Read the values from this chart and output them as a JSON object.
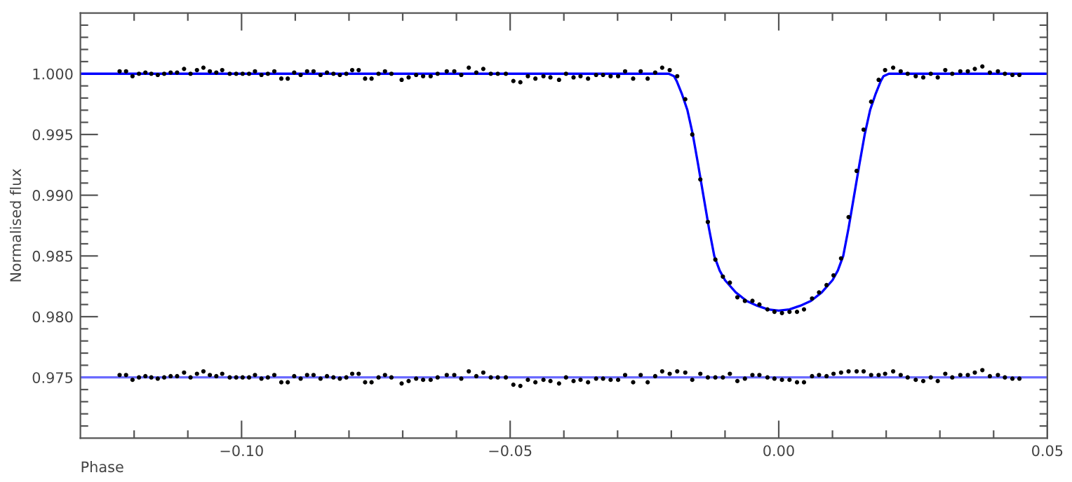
{
  "chart_data": {
    "type": "scatter",
    "xlabel": "Phase",
    "ylabel": "Normalised flux",
    "xlim": [
      -0.13,
      0.05
    ],
    "ylim": [
      0.97,
      1.005
    ],
    "xticks": [
      {
        "value": -0.12,
        "label": null
      },
      {
        "value": -0.11,
        "label": null
      },
      {
        "value": -0.1,
        "label": "−0.10"
      },
      {
        "value": -0.09,
        "label": null
      },
      {
        "value": -0.08,
        "label": null
      },
      {
        "value": -0.07,
        "label": null
      },
      {
        "value": -0.06,
        "label": null
      },
      {
        "value": -0.05,
        "label": "−0.05"
      },
      {
        "value": -0.04,
        "label": null
      },
      {
        "value": -0.03,
        "label": null
      },
      {
        "value": -0.02,
        "label": null
      },
      {
        "value": -0.01,
        "label": null
      },
      {
        "value": 0.0,
        "label": "0.00"
      },
      {
        "value": 0.01,
        "label": null
      },
      {
        "value": 0.02,
        "label": null
      },
      {
        "value": 0.03,
        "label": null
      },
      {
        "value": 0.04,
        "label": null
      },
      {
        "value": 0.05,
        "label": "0.05"
      }
    ],
    "yticks": [
      {
        "value": 0.971,
        "label": null
      },
      {
        "value": 0.972,
        "label": null
      },
      {
        "value": 0.973,
        "label": null
      },
      {
        "value": 0.974,
        "label": null
      },
      {
        "value": 0.975,
        "label": "0.975"
      },
      {
        "value": 0.976,
        "label": null
      },
      {
        "value": 0.977,
        "label": null
      },
      {
        "value": 0.978,
        "label": null
      },
      {
        "value": 0.979,
        "label": null
      },
      {
        "value": 0.98,
        "label": "0.980"
      },
      {
        "value": 0.981,
        "label": null
      },
      {
        "value": 0.982,
        "label": null
      },
      {
        "value": 0.983,
        "label": null
      },
      {
        "value": 0.984,
        "label": null
      },
      {
        "value": 0.985,
        "label": "0.985"
      },
      {
        "value": 0.986,
        "label": null
      },
      {
        "value": 0.987,
        "label": null
      },
      {
        "value": 0.988,
        "label": null
      },
      {
        "value": 0.989,
        "label": null
      },
      {
        "value": 0.99,
        "label": "0.990"
      },
      {
        "value": 0.991,
        "label": null
      },
      {
        "value": 0.992,
        "label": null
      },
      {
        "value": 0.993,
        "label": null
      },
      {
        "value": 0.994,
        "label": null
      },
      {
        "value": 0.995,
        "label": "0.995"
      },
      {
        "value": 0.996,
        "label": null
      },
      {
        "value": 0.997,
        "label": null
      },
      {
        "value": 0.998,
        "label": null
      },
      {
        "value": 0.999,
        "label": null
      },
      {
        "value": 1.0,
        "label": "1.000"
      },
      {
        "value": 1.001,
        "label": null
      },
      {
        "value": 1.002,
        "label": null
      },
      {
        "value": 1.003,
        "label": null
      },
      {
        "value": 1.004,
        "label": null
      }
    ],
    "grid": false,
    "legend": false,
    "series": [
      {
        "type": "line",
        "color": "#6a6aff",
        "marker": "none",
        "line_style": "solid",
        "x": [
          -0.13,
          0.05
        ],
        "values": [
          0.975,
          0.975
        ]
      },
      {
        "type": "line",
        "color": "#0000ff",
        "marker": "none",
        "line_style": "solid",
        "x": [
          -0.13,
          -0.0205,
          -0.0195,
          -0.019,
          -0.018,
          -0.017,
          -0.016,
          -0.015,
          -0.014,
          -0.013,
          -0.012,
          -0.011,
          -0.01,
          -0.008,
          -0.006,
          -0.004,
          -0.002,
          0.0,
          0.002,
          0.004,
          0.006,
          0.008,
          0.01,
          0.011,
          0.012,
          0.013,
          0.014,
          0.015,
          0.016,
          0.017,
          0.018,
          0.019,
          0.0195,
          0.0205,
          0.05
        ],
        "values": [
          1.0,
          1.0,
          0.9998,
          0.9994,
          0.9983,
          0.997,
          0.995,
          0.9925,
          0.9899,
          0.9873,
          0.985,
          0.9838,
          0.983,
          0.982,
          0.9813,
          0.9809,
          0.9806,
          0.9805,
          0.9806,
          0.9809,
          0.9813,
          0.982,
          0.983,
          0.9838,
          0.985,
          0.9873,
          0.9899,
          0.9925,
          0.995,
          0.997,
          0.9983,
          0.9994,
          0.9998,
          1.0,
          1.0
        ]
      },
      {
        "color": "#000000",
        "marker": "circle",
        "x": [
          -0.1227,
          -0.1215,
          -0.1203,
          -0.1191,
          -0.1179,
          -0.1168,
          -0.1156,
          -0.1144,
          -0.1132,
          -0.112,
          -0.1107,
          -0.1095,
          -0.1083,
          -0.1071,
          -0.1059,
          -0.1047,
          -0.1036,
          -0.1022,
          -0.101,
          -0.0998,
          -0.0986,
          -0.0975,
          -0.0963,
          -0.0951,
          -0.0939,
          -0.0926,
          -0.0914,
          -0.0902,
          -0.089,
          -0.0878,
          -0.0866,
          -0.0853,
          -0.0841,
          -0.0829,
          -0.0817,
          -0.0805,
          -0.0794,
          -0.0782,
          -0.077,
          -0.0758,
          -0.0745,
          -0.0733,
          -0.0721,
          -0.0702,
          -0.0689,
          -0.0675,
          -0.0662,
          -0.0648,
          -0.0635,
          -0.0618,
          -0.0604,
          -0.0591,
          -0.0577,
          -0.0563,
          -0.055,
          -0.0536,
          -0.0523,
          -0.0508,
          -0.0494,
          -0.0481,
          -0.0467,
          -0.0453,
          -0.0438,
          -0.0425,
          -0.0409,
          -0.0396,
          -0.0382,
          -0.0369,
          -0.0355,
          -0.034,
          -0.0327,
          -0.0313,
          -0.0299,
          -0.0286,
          -0.0271,
          -0.0257,
          -0.0244,
          -0.023,
          -0.0217,
          -0.0203,
          -0.0189,
          -0.0174,
          -0.0161,
          -0.0146,
          -0.0132,
          -0.0118,
          -0.0104,
          -0.0091,
          -0.0077,
          -0.0063,
          -0.0049,
          -0.0036,
          -0.0021,
          -0.0008,
          0.0006,
          0.002,
          0.0034,
          0.0047,
          0.0062,
          0.0075,
          0.0089,
          0.0102,
          0.0116,
          0.013,
          0.0145,
          0.0158,
          0.0172,
          0.0186,
          0.0198,
          0.0213,
          0.0227,
          0.024,
          0.0255,
          0.0269,
          0.0283,
          0.0296,
          0.031,
          0.0323,
          0.0338,
          0.0352,
          0.0365,
          0.0379,
          0.0393,
          0.0408,
          0.0421,
          0.0435,
          0.0448
        ],
        "values": [
          1.0002,
          1.0002,
          0.9998,
          1.0,
          1.0001,
          1.0,
          0.9999,
          1.0,
          1.0001,
          1.0001,
          1.0004,
          1.0,
          1.0003,
          1.0005,
          1.0002,
          1.0001,
          1.0003,
          1.0,
          1.0,
          1.0,
          1.0,
          1.0002,
          0.9999,
          1.0,
          1.0002,
          0.9996,
          0.9996,
          1.0001,
          0.9999,
          1.0002,
          1.0002,
          0.9999,
          1.0001,
          1.0,
          0.9999,
          1.0,
          1.0003,
          1.0003,
          0.9996,
          0.9996,
          1.0,
          1.0002,
          1.0,
          0.9995,
          0.9997,
          0.9999,
          0.9998,
          0.9998,
          1.0,
          1.0002,
          1.0002,
          0.9999,
          1.0005,
          1.0001,
          1.0004,
          1.0,
          1.0,
          1.0,
          0.9994,
          0.9993,
          0.9998,
          0.9996,
          0.9998,
          0.9997,
          0.9995,
          1.0,
          0.9997,
          0.9998,
          0.9996,
          0.9999,
          0.9999,
          0.9998,
          0.9998,
          1.0002,
          0.9996,
          1.0002,
          0.9996,
          1.0001,
          1.0005,
          1.0003,
          0.9998,
          0.9979,
          0.995,
          0.9913,
          0.9878,
          0.9847,
          0.9833,
          0.9828,
          0.9816,
          0.9813,
          0.9813,
          0.981,
          0.9806,
          0.9804,
          0.9803,
          0.9804,
          0.9804,
          0.9806,
          0.9815,
          0.982,
          0.9826,
          0.9834,
          0.9848,
          0.9882,
          0.992,
          0.9954,
          0.9977,
          0.9995,
          1.0003,
          1.0005,
          1.0002,
          1.0,
          0.9998,
          0.9997,
          1.0,
          0.9997,
          1.0003,
          1.0,
          1.0002,
          1.0002,
          1.0004,
          1.0006,
          1.0001,
          1.0002,
          1.0,
          0.9999,
          0.9999
        ]
      },
      {
        "color": "#000000",
        "marker": "circle",
        "x": [
          -0.1227,
          -0.1215,
          -0.1203,
          -0.1191,
          -0.1179,
          -0.1168,
          -0.1156,
          -0.1144,
          -0.1132,
          -0.112,
          -0.1107,
          -0.1095,
          -0.1083,
          -0.1071,
          -0.1059,
          -0.1047,
          -0.1036,
          -0.1022,
          -0.101,
          -0.0998,
          -0.0986,
          -0.0975,
          -0.0963,
          -0.0951,
          -0.0939,
          -0.0926,
          -0.0914,
          -0.0902,
          -0.089,
          -0.0878,
          -0.0866,
          -0.0853,
          -0.0841,
          -0.0829,
          -0.0817,
          -0.0805,
          -0.0794,
          -0.0782,
          -0.077,
          -0.0758,
          -0.0745,
          -0.0733,
          -0.0721,
          -0.0702,
          -0.0689,
          -0.0675,
          -0.0662,
          -0.0648,
          -0.0635,
          -0.0618,
          -0.0604,
          -0.0591,
          -0.0577,
          -0.0563,
          -0.055,
          -0.0536,
          -0.0523,
          -0.0508,
          -0.0494,
          -0.0481,
          -0.0467,
          -0.0453,
          -0.0438,
          -0.0425,
          -0.0409,
          -0.0396,
          -0.0382,
          -0.0369,
          -0.0355,
          -0.034,
          -0.0327,
          -0.0313,
          -0.0299,
          -0.0286,
          -0.0271,
          -0.0257,
          -0.0244,
          -0.023,
          -0.0217,
          -0.0203,
          -0.0189,
          -0.0174,
          -0.0161,
          -0.0146,
          -0.0132,
          -0.0118,
          -0.0104,
          -0.0091,
          -0.0077,
          -0.0063,
          -0.0049,
          -0.0036,
          -0.0021,
          -0.0008,
          0.0006,
          0.002,
          0.0034,
          0.0047,
          0.0062,
          0.0075,
          0.0089,
          0.0102,
          0.0116,
          0.013,
          0.0145,
          0.0158,
          0.0172,
          0.0186,
          0.0198,
          0.0213,
          0.0227,
          0.024,
          0.0255,
          0.0269,
          0.0283,
          0.0296,
          0.031,
          0.0323,
          0.0338,
          0.0352,
          0.0365,
          0.0379,
          0.0393,
          0.0408,
          0.0421,
          0.0435,
          0.0448
        ],
        "values": [
          0.9752,
          0.9752,
          0.9748,
          0.975,
          0.9751,
          0.975,
          0.9749,
          0.975,
          0.9751,
          0.9751,
          0.9754,
          0.975,
          0.9753,
          0.9755,
          0.9752,
          0.9751,
          0.9753,
          0.975,
          0.975,
          0.975,
          0.975,
          0.9752,
          0.9749,
          0.975,
          0.9752,
          0.9746,
          0.9746,
          0.9751,
          0.9749,
          0.9752,
          0.9752,
          0.9749,
          0.9751,
          0.975,
          0.9749,
          0.975,
          0.9753,
          0.9753,
          0.9746,
          0.9746,
          0.975,
          0.9752,
          0.975,
          0.9745,
          0.9747,
          0.9749,
          0.9748,
          0.9748,
          0.975,
          0.9752,
          0.9752,
          0.9749,
          0.9755,
          0.9751,
          0.9754,
          0.975,
          0.975,
          0.975,
          0.9744,
          0.9743,
          0.9748,
          0.9746,
          0.9748,
          0.9747,
          0.9745,
          0.975,
          0.9747,
          0.9748,
          0.9746,
          0.9749,
          0.9749,
          0.9748,
          0.9748,
          0.9752,
          0.9746,
          0.9752,
          0.9746,
          0.9751,
          0.9755,
          0.9753,
          0.9755,
          0.9754,
          0.9748,
          0.9753,
          0.975,
          0.975,
          0.975,
          0.9753,
          0.9747,
          0.9749,
          0.9752,
          0.9752,
          0.975,
          0.9749,
          0.9748,
          0.9748,
          0.9746,
          0.9746,
          0.9751,
          0.9752,
          0.9751,
          0.9753,
          0.9754,
          0.9755,
          0.9755,
          0.9755,
          0.9752,
          0.9752,
          0.9753,
          0.9755,
          0.9752,
          0.975,
          0.9748,
          0.9747,
          0.975,
          0.9747,
          0.9753,
          0.975,
          0.9752,
          0.9752,
          0.9754,
          0.9756,
          0.9751,
          0.9752,
          0.975,
          0.9749,
          0.9749
        ]
      }
    ]
  }
}
